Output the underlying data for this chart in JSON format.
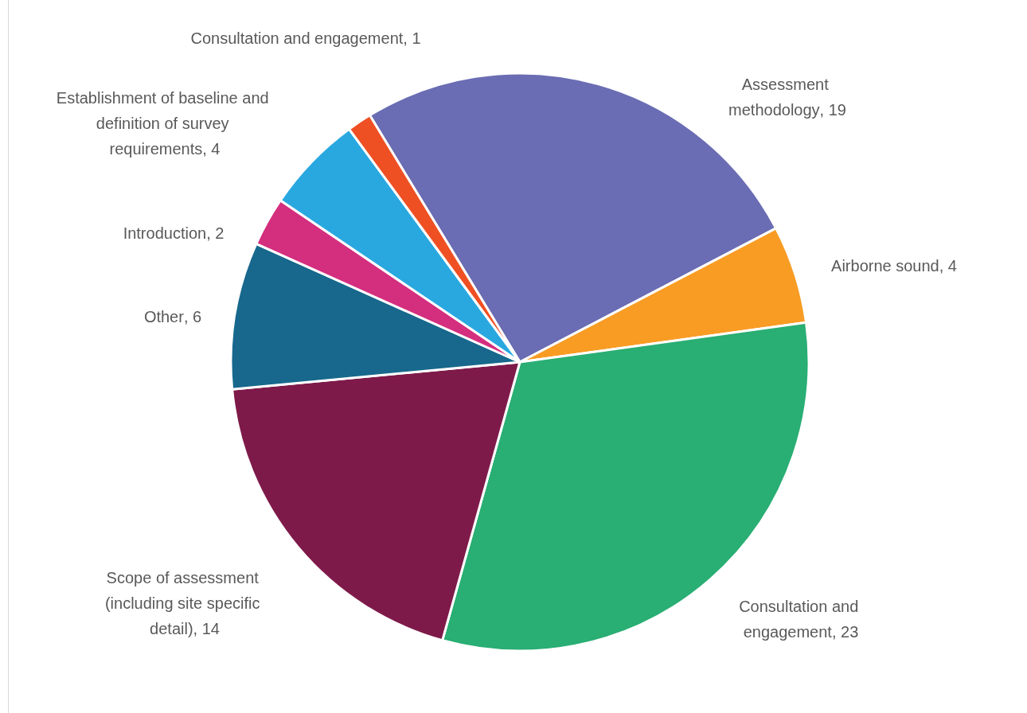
{
  "chart_data": {
    "type": "pie",
    "categories": [
      "Assessment methodology",
      "Airborne sound",
      "Consultation and engagement",
      "Scope of assessment (including site specific detail)",
      "Other",
      "Introduction",
      "Establishment of baseline and definition of survey requirements",
      "Consultation and engagement"
    ],
    "values": [
      19,
      4,
      23,
      14,
      6,
      2,
      4,
      1
    ],
    "value_labels": [
      ", 19",
      ", 4",
      ", 23",
      ", 14",
      ", 6",
      ", 2",
      ", 4",
      ", 1"
    ],
    "colors": [
      "#6a6db3",
      "#f89c24",
      "#29ae73",
      "#7e1a4a",
      "#17688c",
      "#d42e7e",
      "#29a8e0",
      "#ef5023"
    ],
    "legend": false
  }
}
